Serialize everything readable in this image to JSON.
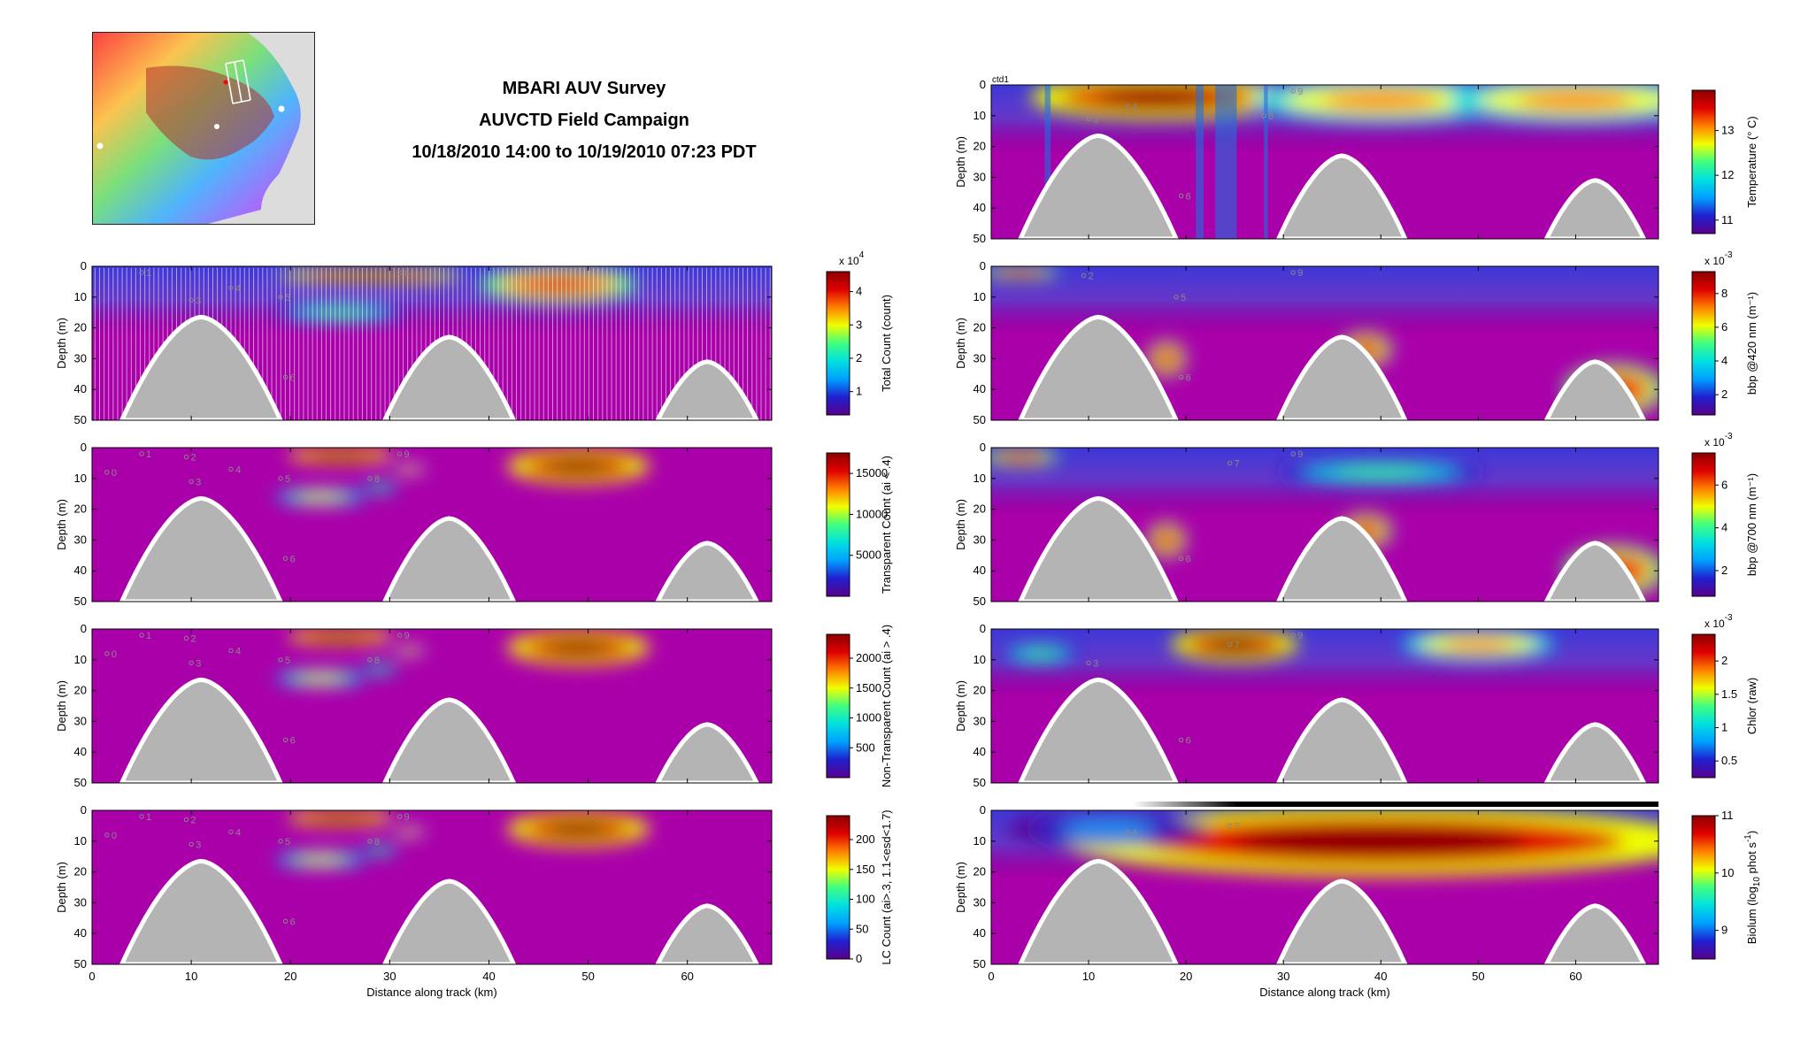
{
  "title": {
    "line1": "MBARI AUV Survey",
    "line2": "AUVCTD Field Campaign",
    "line3": "10/18/2010 14:00 to 10/19/2010 07:23 PDT"
  },
  "colors": {
    "background_fill": "#aa00aa",
    "seafloor": "#b4b4b4",
    "seafloor_edge": "#ffffff",
    "colormap": [
      "#5a008c",
      "#2020d0",
      "#00a0ff",
      "#00e0e0",
      "#40ff80",
      "#f0ff00",
      "#ff8000",
      "#e00000",
      "#8c0000"
    ]
  },
  "chart_data": [
    {
      "id": "total-count",
      "type": "heatmap",
      "xlabel": "",
      "ylabel": "Depth (m)",
      "xlim": [
        0,
        68.5
      ],
      "ylim": [
        50,
        0
      ],
      "xticks": [
        0,
        10,
        20,
        30,
        40,
        50,
        60
      ],
      "yticks": [
        0,
        10,
        20,
        30,
        40,
        50
      ],
      "colorbar_label": "Total Count (count)",
      "colorbar_exponent": "x 10",
      "colorbar_exponent_power": "4",
      "colorbar_ticks": [
        1,
        2,
        3,
        4
      ],
      "colorbar_range": [
        0.3,
        4.6
      ],
      "seafloor_peaks": [
        {
          "center": 11,
          "top": 16.5,
          "halfwidth": 8
        },
        {
          "center": 36,
          "top": 23,
          "halfwidth": 6.5
        },
        {
          "center": 62,
          "top": 31,
          "halfwidth": 5
        }
      ],
      "blobs": [
        {
          "x": 28,
          "y": 3,
          "rx": 7,
          "ry": 1.5,
          "v": 1
        },
        {
          "x": 47,
          "y": 6,
          "rx": 6,
          "ry": 4,
          "v": 0.85
        },
        {
          "x": 25,
          "y": 15,
          "rx": 5,
          "ry": 2,
          "v": 0.55
        }
      ],
      "waypoints": [
        {
          "label": "1",
          "x": 5,
          "y": 2
        },
        {
          "label": "3",
          "x": 10,
          "y": 11
        },
        {
          "label": "4",
          "x": 14,
          "y": 7
        },
        {
          "label": "5",
          "x": 19,
          "y": 10
        },
        {
          "label": "6",
          "x": 19.5,
          "y": 36
        },
        {
          "label": "8",
          "x": 31,
          "y": 2
        }
      ]
    },
    {
      "id": "transparent-count",
      "type": "heatmap",
      "xlabel": "",
      "ylabel": "Depth (m)",
      "xlim": [
        0,
        68.5
      ],
      "ylim": [
        50,
        0
      ],
      "xticks": [
        0,
        10,
        20,
        30,
        40,
        50,
        60
      ],
      "yticks": [
        0,
        10,
        20,
        30,
        40,
        50
      ],
      "colorbar_label": "Transparent Count (ai < .4)",
      "colorbar_ticks": [
        5000,
        10000,
        15000
      ],
      "colorbar_range": [
        0,
        17500
      ],
      "seafloor_peaks": [
        {
          "center": 11,
          "top": 16.5,
          "halfwidth": 8
        },
        {
          "center": 36,
          "top": 23,
          "halfwidth": 6.5
        },
        {
          "center": 62,
          "top": 31,
          "halfwidth": 5
        }
      ],
      "blobs": [
        {
          "x": 25,
          "y": 2.5,
          "rx": 4,
          "ry": 1.8,
          "v": 1
        },
        {
          "x": 49,
          "y": 6,
          "rx": 5.5,
          "ry": 4,
          "v": 1
        },
        {
          "x": 23,
          "y": 16,
          "rx": 3.5,
          "ry": 1.8,
          "v": 0.6
        },
        {
          "x": 29,
          "y": 13,
          "rx": 1.5,
          "ry": 1.2,
          "v": 0.5
        },
        {
          "x": 32,
          "y": 7,
          "rx": 1.2,
          "ry": 1,
          "v": 0.7
        }
      ],
      "waypoints": [
        {
          "label": "0",
          "x": 1.5,
          "y": 8
        },
        {
          "label": "1",
          "x": 5,
          "y": 2
        },
        {
          "label": "2",
          "x": 9.5,
          "y": 3
        },
        {
          "label": "3",
          "x": 10,
          "y": 11
        },
        {
          "label": "4",
          "x": 14,
          "y": 7
        },
        {
          "label": "5",
          "x": 19,
          "y": 10
        },
        {
          "label": "6",
          "x": 19.5,
          "y": 36
        },
        {
          "label": "8",
          "x": 28,
          "y": 10
        },
        {
          "label": "9",
          "x": 31,
          "y": 2
        }
      ]
    },
    {
      "id": "non-transparent-count",
      "type": "heatmap",
      "xlabel": "",
      "ylabel": "Depth (m)",
      "xlim": [
        0,
        68.5
      ],
      "ylim": [
        50,
        0
      ],
      "xticks": [
        0,
        10,
        20,
        30,
        40,
        50,
        60
      ],
      "yticks": [
        0,
        10,
        20,
        30,
        40,
        50
      ],
      "colorbar_label": "Non-Transparent Count (ai > .4)",
      "colorbar_ticks": [
        500,
        1000,
        1500,
        2000
      ],
      "colorbar_range": [
        0,
        2400
      ],
      "seafloor_peaks": [
        {
          "center": 11,
          "top": 16.5,
          "halfwidth": 8
        },
        {
          "center": 36,
          "top": 23,
          "halfwidth": 6.5
        },
        {
          "center": 62,
          "top": 31,
          "halfwidth": 5
        }
      ],
      "blobs": [
        {
          "x": 25,
          "y": 2.5,
          "rx": 4,
          "ry": 1.8,
          "v": 1
        },
        {
          "x": 49,
          "y": 6,
          "rx": 5.5,
          "ry": 4,
          "v": 1
        },
        {
          "x": 23,
          "y": 16,
          "rx": 3.5,
          "ry": 1.8,
          "v": 0.6
        },
        {
          "x": 29,
          "y": 13,
          "rx": 1.5,
          "ry": 1.2,
          "v": 0.5
        },
        {
          "x": 32,
          "y": 7,
          "rx": 1.2,
          "ry": 1,
          "v": 0.7
        }
      ],
      "waypoints": [
        {
          "label": "0",
          "x": 1.5,
          "y": 8
        },
        {
          "label": "1",
          "x": 5,
          "y": 2
        },
        {
          "label": "2",
          "x": 9.5,
          "y": 3
        },
        {
          "label": "3",
          "x": 10,
          "y": 11
        },
        {
          "label": "4",
          "x": 14,
          "y": 7
        },
        {
          "label": "5",
          "x": 19,
          "y": 10
        },
        {
          "label": "6",
          "x": 19.5,
          "y": 36
        },
        {
          "label": "8",
          "x": 28,
          "y": 10
        },
        {
          "label": "9",
          "x": 31,
          "y": 2
        }
      ]
    },
    {
      "id": "lc-count",
      "type": "heatmap",
      "xlabel": "Distance along track (km)",
      "ylabel": "Depth (m)",
      "xlim": [
        0,
        68.5
      ],
      "ylim": [
        50,
        0
      ],
      "xticks": [
        0,
        10,
        20,
        30,
        40,
        50,
        60
      ],
      "yticks": [
        0,
        10,
        20,
        30,
        40,
        50
      ],
      "colorbar_label": "LC Count (ai>.3, 1.1<esd<1.7)",
      "colorbar_ticks": [
        0,
        50,
        100,
        150,
        200
      ],
      "colorbar_range": [
        0,
        240
      ],
      "seafloor_peaks": [
        {
          "center": 11,
          "top": 16.5,
          "halfwidth": 8
        },
        {
          "center": 36,
          "top": 23,
          "halfwidth": 6.5
        },
        {
          "center": 62,
          "top": 31,
          "halfwidth": 5
        }
      ],
      "blobs": [
        {
          "x": 25,
          "y": 2.5,
          "rx": 4,
          "ry": 1.8,
          "v": 1
        },
        {
          "x": 49,
          "y": 6,
          "rx": 5.5,
          "ry": 4,
          "v": 1
        },
        {
          "x": 23,
          "y": 16,
          "rx": 3.5,
          "ry": 1.8,
          "v": 0.6
        },
        {
          "x": 29,
          "y": 13,
          "rx": 1.5,
          "ry": 1.2,
          "v": 0.5
        },
        {
          "x": 32,
          "y": 7,
          "rx": 1.2,
          "ry": 1,
          "v": 0.7
        }
      ],
      "waypoints": [
        {
          "label": "0",
          "x": 1.5,
          "y": 8
        },
        {
          "label": "1",
          "x": 5,
          "y": 2
        },
        {
          "label": "2",
          "x": 9.5,
          "y": 3
        },
        {
          "label": "3",
          "x": 10,
          "y": 11
        },
        {
          "label": "4",
          "x": 14,
          "y": 7
        },
        {
          "label": "5",
          "x": 19,
          "y": 10
        },
        {
          "label": "6",
          "x": 19.5,
          "y": 36
        },
        {
          "label": "8",
          "x": 28,
          "y": 10
        },
        {
          "label": "9",
          "x": 31,
          "y": 2
        }
      ]
    },
    {
      "id": "temperature",
      "type": "heatmap",
      "panel_label": "ctd1",
      "xlabel": "",
      "ylabel": "Depth (m)",
      "xlim": [
        0,
        68.5
      ],
      "ylim": [
        50,
        0
      ],
      "xticks": [
        0,
        10,
        20,
        30,
        40,
        50,
        60
      ],
      "yticks": [
        0,
        10,
        20,
        30,
        40,
        50
      ],
      "colorbar_label": "Temperature (° C)",
      "colorbar_ticks": [
        11,
        12,
        13
      ],
      "colorbar_range": [
        10.7,
        13.9
      ],
      "seafloor_peaks": [
        {
          "center": 11,
          "top": 16.5,
          "halfwidth": 8
        },
        {
          "center": 36,
          "top": 23,
          "halfwidth": 6.5
        },
        {
          "center": 62,
          "top": 31,
          "halfwidth": 5
        }
      ],
      "blobs": [
        {
          "x": 17,
          "y": 4,
          "rx": 10,
          "ry": 5,
          "v": 1
        },
        {
          "x": 40,
          "y": 5,
          "rx": 10,
          "ry": 5,
          "v": 0.8
        },
        {
          "x": 60,
          "y": 5,
          "rx": 10,
          "ry": 5,
          "v": 0.7
        }
      ],
      "waypoints": [
        {
          "label": "3",
          "x": 10,
          "y": 11
        },
        {
          "label": "4",
          "x": 14,
          "y": 7
        },
        {
          "label": "6",
          "x": 19.5,
          "y": 36
        },
        {
          "label": "8",
          "x": 28,
          "y": 10
        },
        {
          "label": "9",
          "x": 31,
          "y": 2
        }
      ]
    },
    {
      "id": "bbp-420",
      "type": "heatmap",
      "xlabel": "",
      "ylabel": "Depth (m)",
      "xlim": [
        0,
        68.5
      ],
      "ylim": [
        50,
        0
      ],
      "xticks": [
        0,
        10,
        20,
        30,
        40,
        50,
        60
      ],
      "yticks": [
        0,
        10,
        20,
        30,
        40,
        50
      ],
      "colorbar_label": "bbp @420 nm (m⁻¹)",
      "colorbar_exponent": "x 10",
      "colorbar_exponent_power": "-3",
      "colorbar_ticks": [
        2,
        4,
        6,
        8
      ],
      "colorbar_range": [
        0.8,
        9.3
      ],
      "seafloor_peaks": [
        {
          "center": 11,
          "top": 16.5,
          "halfwidth": 8
        },
        {
          "center": 36,
          "top": 23,
          "halfwidth": 6.5
        },
        {
          "center": 62,
          "top": 31,
          "halfwidth": 5
        }
      ],
      "blobs": [
        {
          "x": 3,
          "y": 2,
          "rx": 3,
          "ry": 1.5,
          "v": 0.9
        },
        {
          "x": 64,
          "y": 40,
          "rx": 4,
          "ry": 6,
          "v": 0.9
        },
        {
          "x": 38.5,
          "y": 27,
          "rx": 2,
          "ry": 4,
          "v": 0.9
        },
        {
          "x": 18,
          "y": 30,
          "rx": 1.5,
          "ry": 4,
          "v": 0.9
        }
      ],
      "waypoints": [
        {
          "label": "2",
          "x": 9.5,
          "y": 3
        },
        {
          "label": "5",
          "x": 19,
          "y": 10
        },
        {
          "label": "6",
          "x": 19.5,
          "y": 36
        },
        {
          "label": "9",
          "x": 31,
          "y": 2
        }
      ]
    },
    {
      "id": "bbp-700",
      "type": "heatmap",
      "xlabel": "",
      "ylabel": "Depth (m)",
      "xlim": [
        0,
        68.5
      ],
      "ylim": [
        50,
        0
      ],
      "xticks": [
        0,
        10,
        20,
        30,
        40,
        50,
        60
      ],
      "yticks": [
        0,
        10,
        20,
        30,
        40,
        50
      ],
      "colorbar_label": "bbp @700 nm (m⁻¹)",
      "colorbar_exponent": "x 10",
      "colorbar_exponent_power": "-3",
      "colorbar_ticks": [
        2,
        4,
        6
      ],
      "colorbar_range": [
        0.8,
        7.5
      ],
      "seafloor_peaks": [
        {
          "center": 11,
          "top": 16.5,
          "halfwidth": 8
        },
        {
          "center": 36,
          "top": 23,
          "halfwidth": 6.5
        },
        {
          "center": 62,
          "top": 31,
          "halfwidth": 5
        }
      ],
      "blobs": [
        {
          "x": 3,
          "y": 3,
          "rx": 3,
          "ry": 2,
          "v": 0.9
        },
        {
          "x": 64,
          "y": 40,
          "rx": 4,
          "ry": 6,
          "v": 0.9
        },
        {
          "x": 38.5,
          "y": 27,
          "rx": 2,
          "ry": 4,
          "v": 0.9
        },
        {
          "x": 18,
          "y": 30,
          "rx": 1.5,
          "ry": 4,
          "v": 0.9
        },
        {
          "x": 40,
          "y": 8,
          "rx": 8,
          "ry": 2.5,
          "v": 0.55
        }
      ],
      "waypoints": [
        {
          "label": "7",
          "x": 24.5,
          "y": 5
        },
        {
          "label": "9",
          "x": 31,
          "y": 2
        },
        {
          "label": "6",
          "x": 19.5,
          "y": 36
        }
      ]
    },
    {
      "id": "chlor",
      "type": "heatmap",
      "xlabel": "",
      "ylabel": "Depth (m)",
      "xlim": [
        0,
        68.5
      ],
      "ylim": [
        50,
        0
      ],
      "xticks": [
        0,
        10,
        20,
        30,
        40,
        50,
        60
      ],
      "yticks": [
        0,
        10,
        20,
        30,
        40,
        50
      ],
      "colorbar_label": "Chlor (raw)",
      "colorbar_exponent": "x 10",
      "colorbar_exponent_power": "-3",
      "colorbar_ticks": [
        0.5,
        1,
        1.5,
        2
      ],
      "colorbar_range": [
        0.25,
        2.4
      ],
      "seafloor_peaks": [
        {
          "center": 11,
          "top": 16.5,
          "halfwidth": 8
        },
        {
          "center": 36,
          "top": 23,
          "halfwidth": 6.5
        },
        {
          "center": 62,
          "top": 31,
          "halfwidth": 5
        }
      ],
      "blobs": [
        {
          "x": 25,
          "y": 5,
          "rx": 5,
          "ry": 4,
          "v": 1
        },
        {
          "x": 50,
          "y": 5,
          "rx": 6,
          "ry": 3.5,
          "v": 0.8
        },
        {
          "x": 5,
          "y": 8,
          "rx": 3,
          "ry": 2,
          "v": 0.5
        }
      ],
      "waypoints": [
        {
          "label": "3",
          "x": 10,
          "y": 11
        },
        {
          "label": "6",
          "x": 19.5,
          "y": 36
        },
        {
          "label": "7",
          "x": 24.5,
          "y": 5
        },
        {
          "label": "9",
          "x": 31,
          "y": 2
        }
      ]
    },
    {
      "id": "biolum",
      "type": "heatmap",
      "xlabel": "Distance along track (km)",
      "ylabel": "Depth (m)",
      "xlim": [
        0,
        68.5
      ],
      "ylim": [
        50,
        0
      ],
      "xticks": [
        0,
        10,
        20,
        30,
        40,
        50,
        60
      ],
      "yticks": [
        0,
        10,
        20,
        30,
        40,
        50
      ],
      "colorbar_label": "Biolum (log",
      "colorbar_label_sub": "10",
      "colorbar_label_rest": " phot s",
      "colorbar_label_sup": "-1",
      "colorbar_label_end": ")",
      "colorbar_ticks": [
        9,
        10,
        11
      ],
      "colorbar_range": [
        8.5,
        11
      ],
      "seafloor_peaks": [
        {
          "center": 11,
          "top": 16.5,
          "halfwidth": 8
        },
        {
          "center": 36,
          "top": 23,
          "halfwidth": 6.5
        },
        {
          "center": 62,
          "top": 31,
          "halfwidth": 5
        }
      ],
      "blobs": [
        {
          "x": 40,
          "y": 10,
          "rx": 25,
          "ry": 8,
          "v": 1
        },
        {
          "x": 12,
          "y": 6,
          "rx": 8,
          "ry": 4,
          "v": 0.3
        }
      ],
      "waypoints": [
        {
          "label": "4",
          "x": 14,
          "y": 7
        },
        {
          "label": "7",
          "x": 24.5,
          "y": 5
        }
      ],
      "nightbar": {
        "x_start": 14.5,
        "x_end": 68.5
      }
    }
  ]
}
